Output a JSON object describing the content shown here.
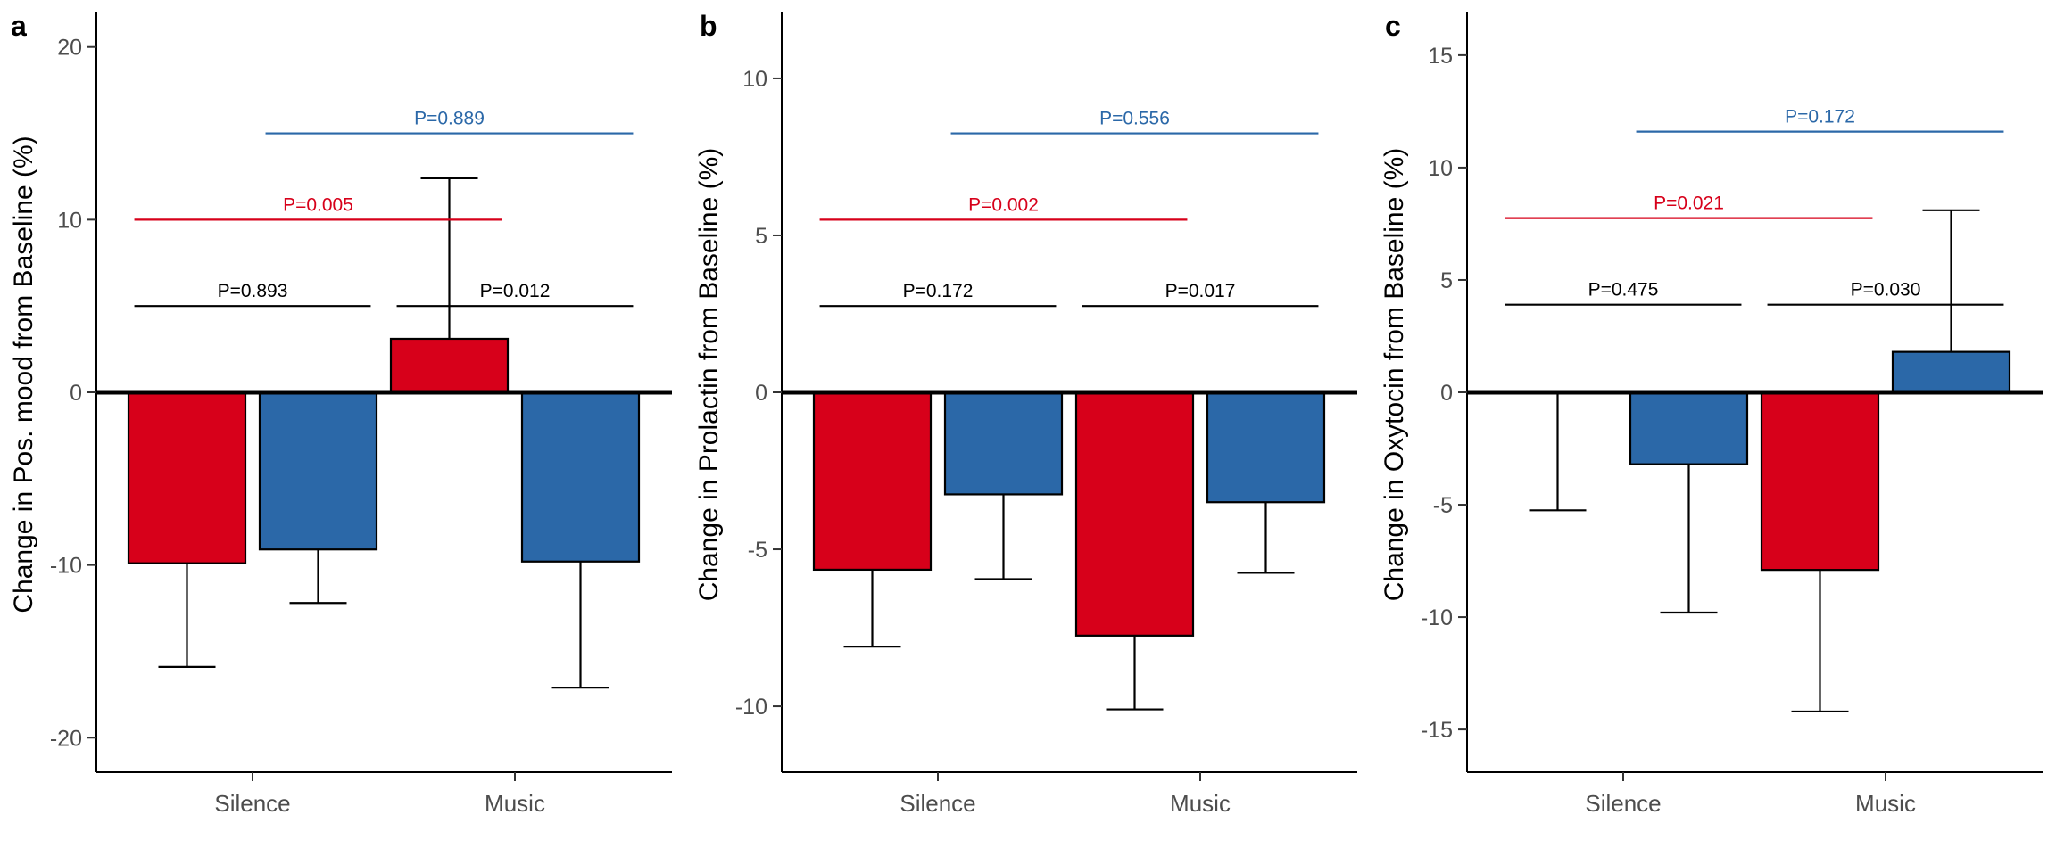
{
  "colors": {
    "red": "#D7001A",
    "blue": "#2B68A8",
    "black": "#000000",
    "tick_text": "#4D4D4D"
  },
  "chart_data": [
    {
      "type": "bar",
      "panel_label": "a",
      "ylabel": "Change in Pos. mood from Baseline (%)",
      "ylim": [
        -22,
        22
      ],
      "yticks": [
        20,
        10,
        0,
        -10,
        -20
      ],
      "ytick_labels": [
        "20",
        "10",
        "0",
        "-10",
        "-20"
      ],
      "categories": [
        "Silence",
        "Music"
      ],
      "bars": [
        {
          "category": "Silence",
          "color": "red",
          "value": -9.9,
          "err_end": -15.9
        },
        {
          "category": "Silence",
          "color": "blue",
          "value": -9.1,
          "err_end": -12.2
        },
        {
          "category": "Music",
          "color": "red",
          "value": 3.1,
          "err_end": 12.4
        },
        {
          "category": "Music",
          "color": "blue",
          "value": -9.8,
          "err_end": -17.1
        }
      ],
      "comparisons": [
        {
          "label": "P=0.893",
          "color": "black",
          "from": 0,
          "to": 1,
          "y": 5.0
        },
        {
          "label": "P=0.012",
          "color": "black",
          "from": 2,
          "to": 3,
          "y": 5.0
        },
        {
          "label": "P=0.005",
          "color": "red",
          "from": 0,
          "to": 2,
          "y": 10.0
        },
        {
          "label": "P=0.889",
          "color": "blue",
          "from": 1,
          "to": 3,
          "y": 15.0
        }
      ]
    },
    {
      "type": "bar",
      "panel_label": "b",
      "ylabel": "Change in Prolactin from Baseline (%)",
      "ylim": [
        -12.1,
        12.1
      ],
      "yticks": [
        10,
        5,
        0,
        -5,
        -10
      ],
      "ytick_labels": [
        "10",
        "5",
        "0",
        "-5",
        "-10"
      ],
      "categories": [
        "Silence",
        "Music"
      ],
      "bars": [
        {
          "category": "Silence",
          "color": "red",
          "value": -5.65,
          "err_end": -8.1
        },
        {
          "category": "Silence",
          "color": "blue",
          "value": -3.25,
          "err_end": -5.95
        },
        {
          "category": "Music",
          "color": "red",
          "value": -7.75,
          "err_end": -10.1
        },
        {
          "category": "Music",
          "color": "blue",
          "value": -3.5,
          "err_end": -5.75
        }
      ],
      "comparisons": [
        {
          "label": "P=0.172",
          "color": "black",
          "from": 0,
          "to": 1,
          "y": 2.75
        },
        {
          "label": "P=0.017",
          "color": "black",
          "from": 2,
          "to": 3,
          "y": 2.75
        },
        {
          "label": "P=0.002",
          "color": "red",
          "from": 0,
          "to": 2,
          "y": 5.5
        },
        {
          "label": "P=0.556",
          "color": "blue",
          "from": 1,
          "to": 3,
          "y": 8.25
        }
      ]
    },
    {
      "type": "bar",
      "panel_label": "c",
      "ylabel": "Change in Oxytocin from Baseline (%)",
      "ylim": [
        -16.9,
        16.9
      ],
      "yticks": [
        15,
        10,
        5,
        0,
        -5,
        -10,
        -15
      ],
      "ytick_labels": [
        "15",
        "10",
        "5",
        "0",
        "-5",
        "-10",
        "-15"
      ],
      "categories": [
        "Silence",
        "Music"
      ],
      "bars": [
        {
          "category": "Silence",
          "color": "red",
          "value": 0.0,
          "err_end": -5.25
        },
        {
          "category": "Silence",
          "color": "blue",
          "value": -3.2,
          "err_end": -9.8
        },
        {
          "category": "Music",
          "color": "red",
          "value": -7.9,
          "err_end": -14.2
        },
        {
          "category": "Music",
          "color": "blue",
          "value": 1.8,
          "err_end": 8.1
        }
      ],
      "comparisons": [
        {
          "label": "P=0.475",
          "color": "black",
          "from": 0,
          "to": 1,
          "y": 3.9
        },
        {
          "label": "P=0.030",
          "color": "black",
          "from": 2,
          "to": 3,
          "y": 3.9
        },
        {
          "label": "P=0.021",
          "color": "red",
          "from": 0,
          "to": 2,
          "y": 7.75
        },
        {
          "label": "P=0.172",
          "color": "blue",
          "from": 1,
          "to": 3,
          "y": 11.6
        }
      ]
    }
  ]
}
